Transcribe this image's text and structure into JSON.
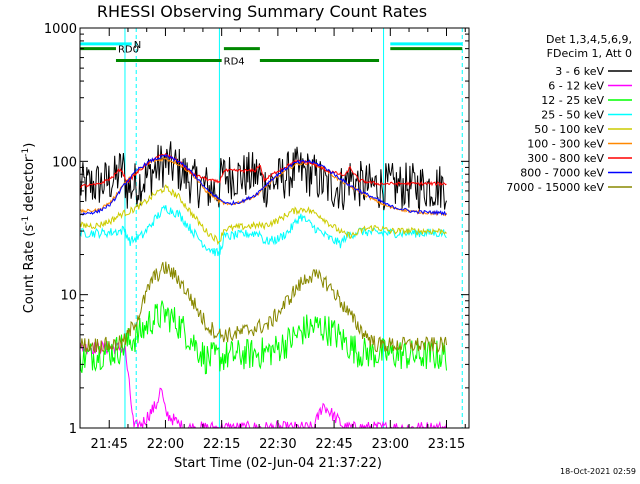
{
  "chart_data": {
    "type": "line",
    "title": "RHESSI Observing Summary Count Rates",
    "xlabel": "Start Time (02-Jun-04 21:37:22)",
    "ylabel_parts": [
      "Count Rate (s",
      "-1",
      " detector",
      "-1",
      ")"
    ],
    "ylabel": "Count Rate (s^-1 detector^-1)",
    "yscale": "log",
    "ylim": [
      1,
      1000
    ],
    "xlim_minutes": [
      21.62,
      23.35
    ],
    "x_ticks": [
      {
        "label": "21:45",
        "hour": 21.75
      },
      {
        "label": "22:00",
        "hour": 22.0
      },
      {
        "label": "22:15",
        "hour": 22.25
      },
      {
        "label": "22:30",
        "hour": 22.5
      },
      {
        "label": "22:45",
        "hour": 22.75
      },
      {
        "label": "23:00",
        "hour": 23.0
      },
      {
        "label": "23:15",
        "hour": 23.25
      }
    ],
    "y_ticks": [
      {
        "label": "1",
        "value": 1
      },
      {
        "label": "10",
        "value": 10
      },
      {
        "label": "100",
        "value": 100
      },
      {
        "label": "1000",
        "value": 1000
      }
    ],
    "legend_header": [
      "Det 1,3,4,5,6,9,",
      "FDecim 1, Att 0"
    ],
    "legend_placement": "top-right outside",
    "series": [
      {
        "name": "3 - 6 keV",
        "color": "#000000",
        "points": [
          [
            21.62,
            65
          ],
          [
            21.72,
            68
          ],
          [
            21.78,
            75
          ],
          [
            21.81,
            92
          ],
          [
            21.83,
            62
          ],
          [
            21.9,
            72
          ],
          [
            21.97,
            92
          ],
          [
            22.0,
            97
          ],
          [
            22.05,
            90
          ],
          [
            22.12,
            70
          ],
          [
            22.2,
            62
          ],
          [
            22.24,
            62
          ],
          [
            22.25,
            78
          ],
          [
            22.3,
            78
          ],
          [
            22.35,
            78
          ],
          [
            22.42,
            80
          ],
          [
            22.43,
            65
          ],
          [
            22.5,
            72
          ],
          [
            22.58,
            86
          ],
          [
            22.65,
            80
          ],
          [
            22.72,
            65
          ],
          [
            22.8,
            63
          ],
          [
            22.81,
            78
          ],
          [
            22.85,
            68
          ],
          [
            22.9,
            65
          ],
          [
            23.0,
            65
          ],
          [
            23.25,
            65
          ]
        ]
      },
      {
        "name": "6 - 12 keV",
        "color": "#ff00ff",
        "points": [
          [
            21.62,
            4
          ],
          [
            21.72,
            4
          ],
          [
            21.78,
            4
          ],
          [
            21.82,
            4
          ],
          [
            21.86,
            1
          ],
          [
            21.9,
            1.1
          ],
          [
            21.96,
            1.5
          ],
          [
            21.98,
            2
          ],
          [
            22.0,
            1.3
          ],
          [
            22.05,
            1.1
          ],
          [
            22.08,
            1
          ],
          [
            22.15,
            1
          ],
          [
            22.24,
            1
          ],
          [
            22.25,
            1
          ],
          [
            22.35,
            1
          ],
          [
            22.42,
            1
          ],
          [
            22.5,
            1
          ],
          [
            22.6,
            1
          ],
          [
            22.66,
            1
          ],
          [
            22.7,
            1.5
          ],
          [
            22.8,
            1
          ],
          [
            22.84,
            1
          ],
          [
            23.0,
            1
          ],
          [
            23.25,
            1
          ]
        ]
      },
      {
        "name": "12 - 25 keV",
        "color": "#00ff00",
        "points": [
          [
            21.62,
            3.3
          ],
          [
            21.7,
            3.6
          ],
          [
            21.78,
            3.8
          ],
          [
            21.82,
            4.2
          ],
          [
            21.88,
            5
          ],
          [
            21.94,
            6.5
          ],
          [
            22.0,
            7.2
          ],
          [
            22.06,
            6.0
          ],
          [
            22.12,
            4.5
          ],
          [
            22.18,
            3.3
          ],
          [
            22.24,
            3.4
          ],
          [
            22.3,
            3.5
          ],
          [
            22.4,
            3.6
          ],
          [
            22.48,
            3.8
          ],
          [
            22.55,
            4.5
          ],
          [
            22.62,
            5.5
          ],
          [
            22.68,
            5.8
          ],
          [
            22.74,
            5.3
          ],
          [
            22.8,
            4.4
          ],
          [
            22.86,
            3.7
          ],
          [
            22.94,
            3.6
          ],
          [
            23.0,
            3.6
          ],
          [
            23.1,
            3.5
          ],
          [
            23.25,
            3.5
          ]
        ]
      },
      {
        "name": "25 - 50 keV",
        "color": "#00ffff",
        "points": [
          [
            21.62,
            29
          ],
          [
            21.72,
            29
          ],
          [
            21.8,
            30
          ],
          [
            21.82,
            31
          ],
          [
            21.84,
            25
          ],
          [
            21.9,
            28
          ],
          [
            21.96,
            38
          ],
          [
            22.0,
            45
          ],
          [
            22.06,
            40
          ],
          [
            22.12,
            30
          ],
          [
            22.18,
            23
          ],
          [
            22.24,
            20
          ],
          [
            22.26,
            27
          ],
          [
            22.32,
            28
          ],
          [
            22.4,
            29
          ],
          [
            22.42,
            29
          ],
          [
            22.44,
            25
          ],
          [
            22.5,
            26
          ],
          [
            22.55,
            30
          ],
          [
            22.6,
            39
          ],
          [
            22.65,
            33
          ],
          [
            22.72,
            27
          ],
          [
            22.78,
            24
          ],
          [
            22.8,
            27
          ],
          [
            22.86,
            30
          ],
          [
            22.94,
            29
          ],
          [
            23.0,
            29
          ],
          [
            23.1,
            29
          ],
          [
            23.25,
            29
          ]
        ]
      },
      {
        "name": "50 - 100 keV",
        "color": "#cccc00",
        "points": [
          [
            21.62,
            33
          ],
          [
            21.7,
            33
          ],
          [
            21.76,
            36
          ],
          [
            21.8,
            40
          ],
          [
            21.84,
            42
          ],
          [
            21.9,
            48
          ],
          [
            21.96,
            58
          ],
          [
            22.0,
            63
          ],
          [
            22.06,
            54
          ],
          [
            22.12,
            40
          ],
          [
            22.18,
            30
          ],
          [
            22.24,
            25
          ],
          [
            22.26,
            31
          ],
          [
            22.32,
            32
          ],
          [
            22.4,
            33
          ],
          [
            22.44,
            33
          ],
          [
            22.5,
            36
          ],
          [
            22.56,
            42
          ],
          [
            22.62,
            44
          ],
          [
            22.68,
            40
          ],
          [
            22.74,
            33
          ],
          [
            22.8,
            28
          ],
          [
            22.84,
            28
          ],
          [
            22.88,
            31
          ],
          [
            22.94,
            32
          ],
          [
            23.0,
            30
          ],
          [
            23.25,
            30
          ]
        ]
      },
      {
        "name": "100 - 300 keV",
        "color": "#ff8800",
        "points": [
          [
            21.62,
            42
          ],
          [
            21.7,
            43
          ],
          [
            21.76,
            50
          ],
          [
            21.82,
            70
          ],
          [
            21.88,
            85
          ],
          [
            21.94,
            100
          ],
          [
            22.0,
            105
          ],
          [
            22.06,
            95
          ],
          [
            22.12,
            80
          ],
          [
            22.18,
            60
          ],
          [
            22.24,
            50
          ],
          [
            22.28,
            47
          ],
          [
            22.34,
            50
          ],
          [
            22.4,
            55
          ],
          [
            22.46,
            68
          ],
          [
            22.52,
            82
          ],
          [
            22.58,
            95
          ],
          [
            22.64,
            98
          ],
          [
            22.7,
            90
          ],
          [
            22.76,
            75
          ],
          [
            22.82,
            65
          ],
          [
            22.86,
            60
          ],
          [
            22.92,
            52
          ],
          [
            23.0,
            45
          ],
          [
            23.1,
            42
          ],
          [
            23.25,
            40
          ]
        ]
      },
      {
        "name": "300 - 800 keV",
        "color": "#ff0000",
        "points": [
          [
            21.62,
            65
          ],
          [
            21.7,
            67
          ],
          [
            21.76,
            75
          ],
          [
            21.8,
            88
          ],
          [
            21.83,
            70
          ],
          [
            21.9,
            90
          ],
          [
            21.96,
            108
          ],
          [
            22.0,
            112
          ],
          [
            22.06,
            100
          ],
          [
            22.12,
            80
          ],
          [
            22.2,
            72
          ],
          [
            22.24,
            70
          ],
          [
            22.26,
            85
          ],
          [
            22.32,
            85
          ],
          [
            22.4,
            85
          ],
          [
            22.42,
            95
          ],
          [
            22.44,
            72
          ],
          [
            22.5,
            85
          ],
          [
            22.58,
            100
          ],
          [
            22.64,
            98
          ],
          [
            22.72,
            85
          ],
          [
            22.8,
            78
          ],
          [
            22.82,
            90
          ],
          [
            22.86,
            72
          ],
          [
            22.94,
            68
          ],
          [
            23.0,
            68
          ],
          [
            23.25,
            68
          ]
        ]
      },
      {
        "name": "800 - 7000 keV",
        "color": "#0000ff",
        "points": [
          [
            21.62,
            40
          ],
          [
            21.7,
            42
          ],
          [
            21.76,
            48
          ],
          [
            21.82,
            68
          ],
          [
            21.88,
            88
          ],
          [
            21.94,
            102
          ],
          [
            22.0,
            110
          ],
          [
            22.06,
            100
          ],
          [
            22.12,
            82
          ],
          [
            22.18,
            62
          ],
          [
            22.24,
            52
          ],
          [
            22.28,
            48
          ],
          [
            22.34,
            50
          ],
          [
            22.4,
            56
          ],
          [
            22.46,
            70
          ],
          [
            22.52,
            85
          ],
          [
            22.58,
            98
          ],
          [
            22.64,
            100
          ],
          [
            22.7,
            92
          ],
          [
            22.76,
            78
          ],
          [
            22.82,
            66
          ],
          [
            22.88,
            58
          ],
          [
            22.94,
            52
          ],
          [
            23.0,
            46
          ],
          [
            23.1,
            42
          ],
          [
            23.25,
            41
          ]
        ]
      },
      {
        "name": "7000 - 15000 keV",
        "color": "#888800",
        "points": [
          [
            21.62,
            4.2
          ],
          [
            21.7,
            4.2
          ],
          [
            21.78,
            4.2
          ],
          [
            21.82,
            4.5
          ],
          [
            21.88,
            7
          ],
          [
            21.94,
            13
          ],
          [
            22.0,
            16
          ],
          [
            22.06,
            13
          ],
          [
            22.12,
            9
          ],
          [
            22.18,
            6
          ],
          [
            22.24,
            5
          ],
          [
            22.3,
            5
          ],
          [
            22.38,
            5.5
          ],
          [
            22.46,
            6
          ],
          [
            22.52,
            8
          ],
          [
            22.58,
            11
          ],
          [
            22.64,
            14
          ],
          [
            22.7,
            13
          ],
          [
            22.76,
            10
          ],
          [
            22.82,
            7
          ],
          [
            22.88,
            5.2
          ],
          [
            22.94,
            4.2
          ],
          [
            23.0,
            4.2
          ],
          [
            23.1,
            4.2
          ],
          [
            23.25,
            4.2
          ]
        ]
      }
    ],
    "markers": [
      {
        "label": "N",
        "color": "#00ffff",
        "hour_start": 21.62,
        "hour_end": 21.85,
        "value": 760,
        "style": "solid"
      },
      {
        "label": "",
        "color": "#00ffff",
        "hour_start": 23.0,
        "hour_end": 23.32,
        "value": 760,
        "style": "solid"
      },
      {
        "label": "RD0",
        "color": "#008800",
        "hour_start": 21.62,
        "hour_end": 21.78,
        "value": 700,
        "style": "solid"
      },
      {
        "label": "",
        "color": "#008800",
        "hour_start": 22.26,
        "hour_end": 22.42,
        "value": 700,
        "style": "solid"
      },
      {
        "label": "",
        "color": "#008800",
        "hour_start": 23.0,
        "hour_end": 23.32,
        "value": 700,
        "style": "solid"
      },
      {
        "label": "RD4",
        "color": "#008800",
        "hour_start": 21.78,
        "hour_end": 22.25,
        "value": 570,
        "style": "solid"
      },
      {
        "label": "",
        "color": "#008800",
        "hour_start": 22.42,
        "hour_end": 22.95,
        "value": 570,
        "style": "solid"
      }
    ],
    "vlines": [
      {
        "hour": 21.62,
        "color": "#00ffff",
        "style": "solid"
      },
      {
        "hour": 21.82,
        "color": "#00ffff",
        "style": "solid"
      },
      {
        "hour": 21.87,
        "color": "#00ffff",
        "style": "dashed"
      },
      {
        "hour": 22.24,
        "color": "#00ffff",
        "style": "solid"
      },
      {
        "hour": 22.97,
        "color": "#00ffff",
        "style": "solid"
      },
      {
        "hour": 23.32,
        "color": "#00ffff",
        "style": "dashed"
      }
    ]
  },
  "footer": {
    "timestamp": "18-Oct-2021 02:59"
  }
}
